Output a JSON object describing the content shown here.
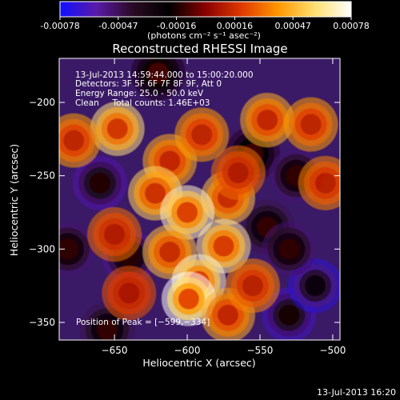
{
  "colorbar": {
    "ticks": [
      "-0.00078",
      "-0.00047",
      "-0.00016",
      "0.00016",
      "0.00047",
      "0.00078"
    ],
    "units_label": "(photons cm⁻² s⁻¹ asec⁻²)",
    "range": [
      -0.00078,
      0.00078
    ],
    "colors": [
      "#1010ff",
      "#5a1aa8",
      "#2a0a22",
      "#000000",
      "#8a0000",
      "#e03a00",
      "#ff9800",
      "#ffe070",
      "#ffffff"
    ]
  },
  "chart_data": {
    "type": "heatmap",
    "title": "Reconstructed RHESSI Image",
    "xlabel": "Heliocentric X (arcsec)",
    "ylabel": "Heliocentric Y (arcsec)",
    "xlim": [
      -688,
      -495
    ],
    "ylim": [
      -362,
      -170
    ],
    "xticks": [
      -650,
      -600,
      -550,
      -500
    ],
    "yticks": [
      -200,
      -250,
      -300,
      -350
    ],
    "xtick_labels": [
      "−650",
      "−600",
      "−550",
      "−500"
    ],
    "ytick_labels": [
      "−200",
      "−250",
      "−300",
      "−350"
    ],
    "peak_position": [
      -599,
      -334
    ],
    "hot_regions": [
      {
        "x": -648,
        "y": -218,
        "value": 0.0006
      },
      {
        "x": -678,
        "y": -226,
        "value": 0.0004
      },
      {
        "x": -612,
        "y": -240,
        "value": 0.00045
      },
      {
        "x": -590,
        "y": -222,
        "value": 0.0004
      },
      {
        "x": -622,
        "y": -262,
        "value": 0.00055
      },
      {
        "x": -572,
        "y": -265,
        "value": 0.0005
      },
      {
        "x": -600,
        "y": -275,
        "value": 0.0007
      },
      {
        "x": -575,
        "y": -298,
        "value": 0.00065
      },
      {
        "x": -612,
        "y": -302,
        "value": 0.0005
      },
      {
        "x": -592,
        "y": -322,
        "value": 0.0007
      },
      {
        "x": -599,
        "y": -334,
        "value": 0.00078
      },
      {
        "x": -572,
        "y": -345,
        "value": 0.00045
      },
      {
        "x": -545,
        "y": -212,
        "value": 0.00045
      },
      {
        "x": -515,
        "y": -215,
        "value": 0.0004
      },
      {
        "x": -505,
        "y": -255,
        "value": 0.00035
      },
      {
        "x": -565,
        "y": -248,
        "value": 0.0003
      },
      {
        "x": -650,
        "y": -290,
        "value": 0.0003
      },
      {
        "x": -640,
        "y": -330,
        "value": 0.00025
      },
      {
        "x": -555,
        "y": -325,
        "value": 0.00035
      }
    ],
    "cold_regions": [
      {
        "x": -660,
        "y": -255,
        "value": -0.0006
      },
      {
        "x": -682,
        "y": -300,
        "value": -0.0005
      },
      {
        "x": -640,
        "y": -305,
        "value": -0.00055
      },
      {
        "x": -655,
        "y": -355,
        "value": -0.00045
      },
      {
        "x": -530,
        "y": -345,
        "value": -0.00065
      },
      {
        "x": -512,
        "y": -325,
        "value": -0.0007
      },
      {
        "x": -555,
        "y": -235,
        "value": -0.0004
      },
      {
        "x": -525,
        "y": -250,
        "value": -0.0005
      },
      {
        "x": -620,
        "y": -180,
        "value": -0.00035
      },
      {
        "x": -545,
        "y": -285,
        "value": -0.00045
      },
      {
        "x": -530,
        "y": -300,
        "value": -0.0005
      }
    ]
  },
  "info": {
    "line1": "13-Jul-2013 14:59:44.000 to 15:00:20.000",
    "line2": "Detectors: 3F 5F 6F 7F 8F 9F, Att 0",
    "line3": "Energy Range: 25.0 - 50.0 keV",
    "line4": "Clean     Total counts: 1.46E+03",
    "peak": "Position of Peak = [−599,−334]"
  },
  "footer_timestamp": "13-Jul-2013 16:20"
}
